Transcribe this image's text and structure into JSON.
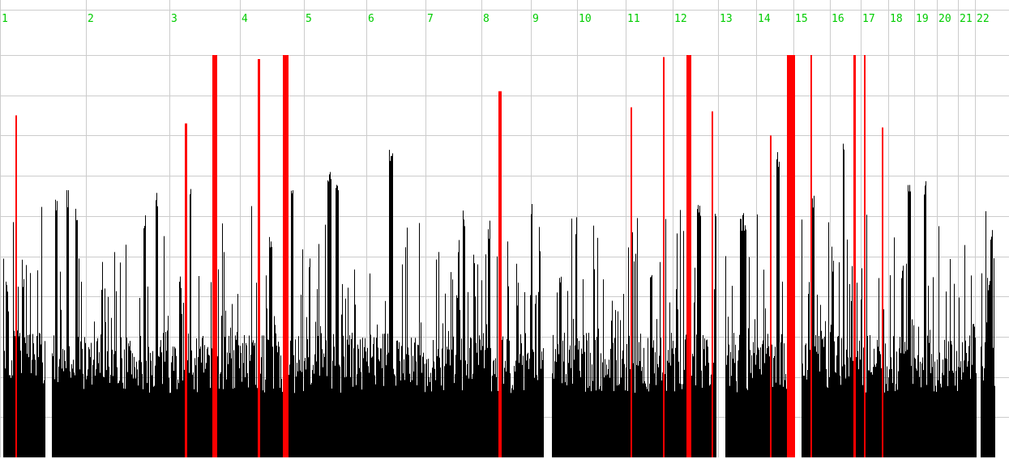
{
  "chart_data": {
    "type": "bar",
    "title": "",
    "xlabel": "",
    "ylabel": "",
    "x_categories": [
      "1",
      "2",
      "3",
      "4",
      "5",
      "6",
      "7",
      "8",
      "9",
      "10",
      "11",
      "12",
      "13",
      "14",
      "15",
      "16",
      "17",
      "18",
      "19",
      "20",
      "21",
      "22"
    ],
    "x_boundaries": [
      0,
      106,
      209,
      296,
      375,
      452,
      525,
      594,
      655,
      712,
      772,
      830,
      886,
      933,
      979,
      1024,
      1062,
      1096,
      1128,
      1156,
      1182,
      1203,
      1236
    ],
    "ylim": [
      0,
      10
    ],
    "ygrid_values": [
      1,
      2,
      3,
      4,
      5,
      6,
      7,
      8,
      9,
      10
    ],
    "grid": true,
    "seed": 7,
    "noise": {
      "base": 1.6,
      "jitter": 1.5,
      "spikeRate": 0.2,
      "spikeMax": 3.4
    },
    "gaps": [
      [
        56,
        64
      ],
      [
        671,
        681
      ],
      [
        884,
        895
      ],
      [
        980,
        989
      ],
      [
        1205,
        1210
      ]
    ],
    "peaks": [
      {
        "x": 7,
        "w": 3,
        "v": 4.4
      },
      {
        "x": 17,
        "w": 8,
        "v": 3.2
      },
      {
        "x": 55,
        "w": 2,
        "v": 1.7
      },
      {
        "x": 68,
        "w": 3,
        "v": 6.5
      },
      {
        "x": 82,
        "w": 3,
        "v": 6.7
      },
      {
        "x": 93,
        "w": 3,
        "v": 6.4
      },
      {
        "x": 177,
        "w": 3,
        "v": 6.1
      },
      {
        "x": 192,
        "w": 3,
        "v": 6.6
      },
      {
        "x": 221,
        "w": 3,
        "v": 4.5
      },
      {
        "x": 234,
        "w": 2,
        "v": 7.1
      },
      {
        "x": 332,
        "w": 4,
        "v": 5.5
      },
      {
        "x": 359,
        "w": 3,
        "v": 6.7
      },
      {
        "x": 404,
        "w": 5,
        "v": 7.3
      },
      {
        "x": 414,
        "w": 4,
        "v": 6.9
      },
      {
        "x": 480,
        "w": 5,
        "v": 7.9
      },
      {
        "x": 571,
        "w": 3,
        "v": 6.2
      },
      {
        "x": 655,
        "w": 2,
        "v": 6.3
      },
      {
        "x": 690,
        "w": 3,
        "v": 4.5
      },
      {
        "x": 710,
        "w": 2,
        "v": 6.0
      },
      {
        "x": 802,
        "w": 3,
        "v": 4.7
      },
      {
        "x": 860,
        "w": 5,
        "v": 6.4
      },
      {
        "x": 882,
        "w": 3,
        "v": 6.2
      },
      {
        "x": 913,
        "w": 8,
        "v": 6.1
      },
      {
        "x": 958,
        "w": 4,
        "v": 7.6
      },
      {
        "x": 1002,
        "w": 3,
        "v": 6.6
      },
      {
        "x": 1040,
        "w": 2,
        "v": 7.9
      },
      {
        "x": 1120,
        "w": 4,
        "v": 7.1
      },
      {
        "x": 1140,
        "w": 3,
        "v": 7.1
      },
      {
        "x": 1200,
        "w": 3,
        "v": 3.4
      },
      {
        "x": 1218,
        "w": 3,
        "v": 4.5
      },
      {
        "x": 1222,
        "w": 3,
        "v": 5.7
      }
    ],
    "highlighted_bars": [
      {
        "x": 19,
        "w": 2,
        "v": 8.5
      },
      {
        "x": 228,
        "w": 3,
        "v": 8.3
      },
      {
        "x": 262,
        "w": 6,
        "v": 10.0
      },
      {
        "x": 318,
        "w": 3,
        "v": 9.9
      },
      {
        "x": 349,
        "w": 5,
        "v": 10.0
      },
      {
        "x": 354,
        "w": 2,
        "v": 10.0
      },
      {
        "x": 615,
        "w": 4,
        "v": 9.1
      },
      {
        "x": 778,
        "w": 2,
        "v": 8.7
      },
      {
        "x": 818,
        "w": 2,
        "v": 9.95
      },
      {
        "x": 847,
        "w": 6,
        "v": 10.0
      },
      {
        "x": 878,
        "w": 2,
        "v": 8.6
      },
      {
        "x": 950,
        "w": 2,
        "v": 8.0
      },
      {
        "x": 971,
        "w": 10,
        "v": 10.0
      },
      {
        "x": 1000,
        "w": 2,
        "v": 10.0
      },
      {
        "x": 1053,
        "w": 3,
        "v": 10.0
      },
      {
        "x": 1066,
        "w": 2,
        "v": 10.0
      },
      {
        "x": 1088,
        "w": 2,
        "v": 8.2
      }
    ],
    "colors": {
      "background": "#ffffff",
      "grid": "#cccccc",
      "bars": "#000000",
      "highlight": "#ff0000",
      "tick_label": "#00cc00"
    }
  }
}
